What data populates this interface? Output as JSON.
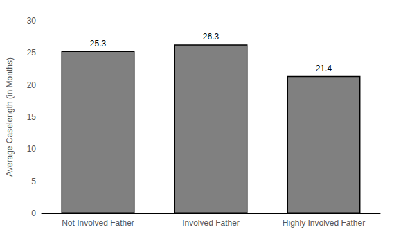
{
  "chart_data": {
    "type": "bar",
    "categories": [
      "Not Involved Father",
      "Involved Father",
      "Highly Involved Father"
    ],
    "values": [
      25.3,
      26.3,
      21.4
    ],
    "color": "#808080",
    "ylabel": "Average Caselength (in Months)",
    "ylim": [
      0,
      30
    ],
    "yticks": [
      0,
      5,
      10,
      15,
      20,
      25,
      30
    ],
    "grid": false,
    "data_labels": true
  }
}
